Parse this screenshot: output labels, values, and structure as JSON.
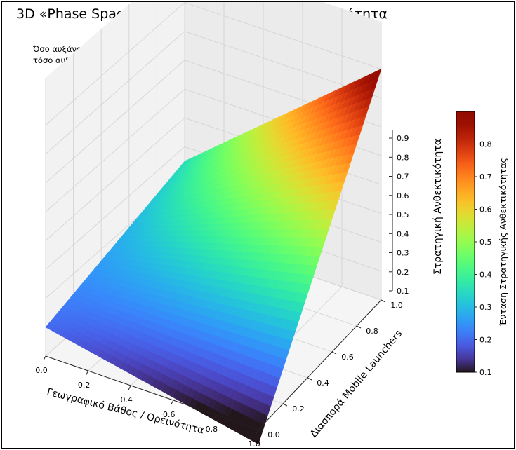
{
  "chart_data": {
    "type": "surface3d",
    "title": "3D «Phase Space of War» – Στρατηγική Ανθεκτικότητα",
    "annotation": [
      "Όσο αυξάνει το γεωγραφικό βάθος και η διασπορά εκτοξευτών,",
      "τόσο αυξάνει η ικανότητα επιβίωσης και ανταπόδοσης."
    ],
    "xlabel": "Γεωγραφικό Βάθος / Ορεινότητα",
    "ylabel": "Διασπορά Mobile Launchers",
    "zlabel": "Στρατηγική Ανθεκτικότητα",
    "xlim": [
      0,
      1
    ],
    "ylim": [
      0,
      1
    ],
    "zlim": [
      0.1,
      0.9
    ],
    "x_ticks": [
      "0.0",
      "0.2",
      "0.4",
      "0.6",
      "0.8",
      "1.0"
    ],
    "y_ticks": [
      "0.0",
      "0.2",
      "0.4",
      "0.6",
      "0.8",
      "1.0"
    ],
    "z_ticks": [
      "0.1",
      "0.2",
      "0.3",
      "0.4",
      "0.5",
      "0.6",
      "0.7",
      "0.8",
      "0.9"
    ],
    "corner_values": {
      "x0_y0": 0.2,
      "x1_y0": 0.05,
      "x0_y1": 0.35,
      "x1_y1": 0.9
    },
    "colormap": "turbo",
    "colorbar": {
      "label": "Ένταση Στρατηγικής Ανθεκτικότητας",
      "range": [
        0.1,
        0.9
      ],
      "ticks": [
        "0.1",
        "0.2",
        "0.3",
        "0.4",
        "0.5",
        "0.6",
        "0.7",
        "0.8"
      ]
    },
    "grid": true
  }
}
